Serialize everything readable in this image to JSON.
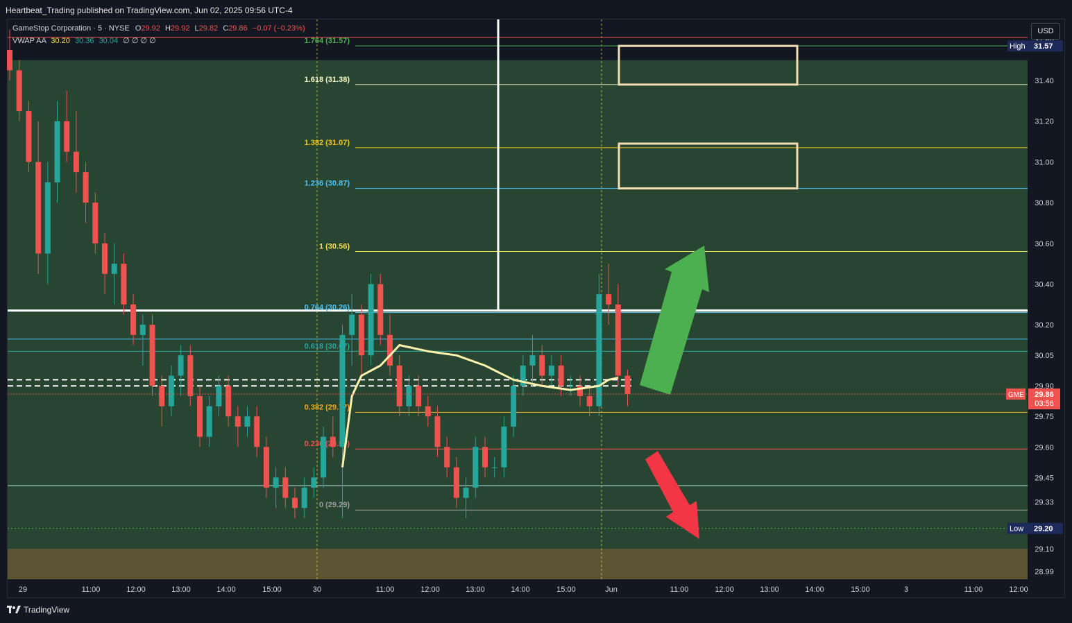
{
  "attribution": "Heartbeat_Trading published on TradingView.com, Jun 02, 2025 09:56 UTC-4",
  "legend": {
    "symbol": "GameStop Corporation · 5 · NYSE",
    "o_label": "O",
    "o_value": "29.92",
    "h_label": "H",
    "h_value": "29.92",
    "l_label": "L",
    "l_value": "29.82",
    "c_label": "C",
    "c_value": "29.86",
    "change": "−0.07 (−0.23%)",
    "indicator_name": "VWAP AA",
    "vwap_values": [
      "30.20",
      "30.36",
      "30.04"
    ],
    "empty_values": [
      "∅",
      "∅",
      "∅",
      "∅"
    ]
  },
  "currency_button": "USD",
  "brand": "TradingView",
  "colors": {
    "bull": "#26a69a",
    "bear": "#ef5350",
    "vwap": "#fff3b0",
    "zone": "#2a4a33",
    "up_arrow": "#4caf50",
    "down_arrow": "#f23645",
    "box": "#f5deb3"
  },
  "chart_data": {
    "type": "candlestick",
    "symbol": "GME",
    "interval": "5",
    "ylim": [
      28.95,
      31.7
    ],
    "y_ticks": [
      "31.60",
      "31.40",
      "31.20",
      "31.00",
      "30.80",
      "30.60",
      "30.40",
      "30.20",
      "30.05",
      "29.90",
      "29.75",
      "29.60",
      "29.45",
      "29.33",
      "29.10",
      "28.99"
    ],
    "x_ticks": [
      "29",
      "11:00",
      "12:00",
      "13:00",
      "14:00",
      "15:00",
      "30",
      "11:00",
      "12:00",
      "13:00",
      "14:00",
      "15:00",
      "Jun",
      "11:00",
      "12:00",
      "13:00",
      "14:00",
      "15:00",
      "3",
      "11:00",
      "12:00"
    ],
    "last_price": {
      "label": "GME",
      "value": "29.86",
      "countdown": "03:56"
    },
    "high_marker": {
      "label": "High",
      "value": "31.57"
    },
    "low_marker": {
      "label": "Low",
      "value": "29.20"
    },
    "fib_levels": [
      {
        "label": "1.764 (31.57)",
        "value": 31.57,
        "color": "#4caf50"
      },
      {
        "label": "1.618 (31.38)",
        "value": 31.38,
        "color": "#f5f5c5"
      },
      {
        "label": "1.382 (31.07)",
        "value": 31.07,
        "color": "#f5c518"
      },
      {
        "label": "1.236 (30.87)",
        "value": 30.87,
        "color": "#4fc3f7"
      },
      {
        "label": "1 (30.56)",
        "value": 30.56,
        "color": "#f5e050"
      },
      {
        "label": "0.764 (30.26)",
        "value": 30.26,
        "color": "#4fc3f7"
      },
      {
        "label": "0.618 (30.07)",
        "value": 30.07,
        "color": "#26a69a"
      },
      {
        "label": "0.382 (29.77)",
        "value": 29.77,
        "color": "#f5a623"
      },
      {
        "label": "0.236 (29.59)",
        "value": 29.59,
        "color": "#ef5350"
      },
      {
        "label": "0 (29.29)",
        "value": 29.29,
        "color": "#9e9e9e"
      }
    ],
    "candles": [
      [
        31.55,
        31.65,
        31.4,
        31.45
      ],
      [
        31.45,
        31.5,
        31.2,
        31.25
      ],
      [
        31.25,
        31.3,
        30.95,
        31.0
      ],
      [
        31.0,
        31.2,
        30.45,
        30.55
      ],
      [
        30.55,
        31.0,
        30.4,
        30.9
      ],
      [
        30.9,
        31.3,
        30.8,
        31.2
      ],
      [
        31.2,
        31.35,
        31.0,
        31.05
      ],
      [
        31.05,
        31.25,
        30.85,
        30.95
      ],
      [
        30.95,
        31.0,
        30.7,
        30.8
      ],
      [
        30.8,
        30.85,
        30.55,
        30.6
      ],
      [
        30.6,
        30.65,
        30.35,
        30.45
      ],
      [
        30.45,
        30.6,
        30.3,
        30.5
      ],
      [
        30.5,
        30.55,
        30.25,
        30.3
      ],
      [
        30.3,
        30.35,
        30.1,
        30.15
      ],
      [
        30.15,
        30.25,
        30.0,
        30.2
      ],
      [
        30.2,
        30.25,
        29.85,
        29.9
      ],
      [
        29.9,
        29.95,
        29.7,
        29.8
      ],
      [
        29.8,
        30.0,
        29.75,
        29.95
      ],
      [
        29.95,
        30.1,
        29.85,
        30.05
      ],
      [
        30.05,
        30.1,
        29.8,
        29.85
      ],
      [
        29.85,
        29.9,
        29.6,
        29.65
      ],
      [
        29.65,
        29.85,
        29.6,
        29.8
      ],
      [
        29.8,
        29.95,
        29.75,
        29.9
      ],
      [
        29.9,
        29.95,
        29.7,
        29.75
      ],
      [
        29.75,
        29.8,
        29.6,
        29.7
      ],
      [
        29.7,
        29.8,
        29.65,
        29.75
      ],
      [
        29.75,
        29.8,
        29.55,
        29.6
      ],
      [
        29.6,
        29.65,
        29.35,
        29.4
      ],
      [
        29.4,
        29.5,
        29.3,
        29.45
      ],
      [
        29.45,
        29.5,
        29.3,
        29.35
      ],
      [
        29.35,
        29.4,
        29.25,
        29.3
      ],
      [
        29.3,
        29.45,
        29.25,
        29.4
      ],
      [
        29.4,
        29.5,
        29.35,
        29.45
      ],
      [
        29.45,
        29.7,
        29.4,
        29.65
      ],
      [
        29.65,
        29.75,
        29.55,
        29.6
      ],
      [
        29.6,
        30.2,
        29.25,
        30.15
      ],
      [
        30.15,
        30.35,
        30.0,
        30.25
      ],
      [
        30.25,
        30.3,
        29.95,
        30.05
      ],
      [
        30.05,
        30.45,
        30.0,
        30.4
      ],
      [
        30.4,
        30.45,
        30.1,
        30.15
      ],
      [
        30.15,
        30.25,
        29.95,
        30.0
      ],
      [
        30.0,
        30.05,
        29.75,
        29.8
      ],
      [
        29.8,
        29.95,
        29.75,
        29.9
      ],
      [
        29.9,
        29.95,
        29.75,
        29.8
      ],
      [
        29.8,
        29.85,
        29.7,
        29.75
      ],
      [
        29.75,
        29.8,
        29.55,
        29.6
      ],
      [
        29.6,
        29.65,
        29.45,
        29.5
      ],
      [
        29.5,
        29.55,
        29.3,
        29.35
      ],
      [
        29.35,
        29.45,
        29.25,
        29.4
      ],
      [
        29.4,
        29.65,
        29.35,
        29.6
      ],
      [
        29.6,
        29.65,
        29.45,
        29.5
      ],
      [
        29.5,
        29.55,
        29.45,
        29.5
      ],
      [
        29.5,
        29.75,
        29.45,
        29.7
      ],
      [
        29.7,
        29.95,
        29.65,
        29.9
      ],
      [
        29.9,
        30.05,
        29.85,
        30.0
      ],
      [
        30.0,
        30.15,
        29.9,
        30.05
      ],
      [
        30.05,
        30.1,
        29.9,
        29.95
      ],
      [
        29.95,
        30.05,
        29.9,
        30.0
      ],
      [
        30.0,
        30.05,
        29.85,
        29.9
      ],
      [
        29.9,
        29.95,
        29.85,
        29.9
      ],
      [
        29.9,
        29.95,
        29.8,
        29.85
      ],
      [
        29.85,
        29.9,
        29.75,
        29.8
      ],
      [
        29.8,
        30.45,
        29.75,
        30.35
      ],
      [
        30.35,
        30.5,
        30.2,
        30.3
      ],
      [
        30.3,
        30.4,
        29.9,
        29.95
      ],
      [
        29.95,
        29.98,
        29.8,
        29.86
      ]
    ],
    "vwap": [
      [
        35,
        29.5
      ],
      [
        36,
        29.85
      ],
      [
        37,
        29.95
      ],
      [
        39,
        30.0
      ],
      [
        41,
        30.1
      ],
      [
        44,
        30.07
      ],
      [
        47,
        30.05
      ],
      [
        50,
        30.0
      ],
      [
        53,
        29.93
      ],
      [
        56,
        29.9
      ],
      [
        59,
        29.88
      ],
      [
        62,
        29.9
      ],
      [
        63,
        29.93
      ],
      [
        64,
        29.94
      ]
    ],
    "extra_levels": [
      {
        "value": 30.27,
        "color": "#ffffff"
      },
      {
        "value": 30.13,
        "color": "#4fc3f7"
      },
      {
        "value": 30.07,
        "color": "#26a69a"
      },
      {
        "value": 29.41,
        "color": "#b2dfdb"
      },
      {
        "value": 29.2,
        "color": "#4caf50"
      }
    ],
    "target_boxes": [
      [
        31.38,
        31.57
      ],
      [
        30.87,
        31.09
      ]
    ],
    "arrows": [
      "up",
      "down"
    ]
  }
}
